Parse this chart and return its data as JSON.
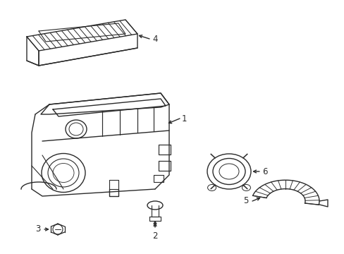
{
  "background_color": "#ffffff",
  "line_color": "#2a2a2a",
  "line_width": 1.0,
  "label_fontsize": 8.5,
  "fig_width": 4.89,
  "fig_height": 3.6,
  "dpi": 100
}
